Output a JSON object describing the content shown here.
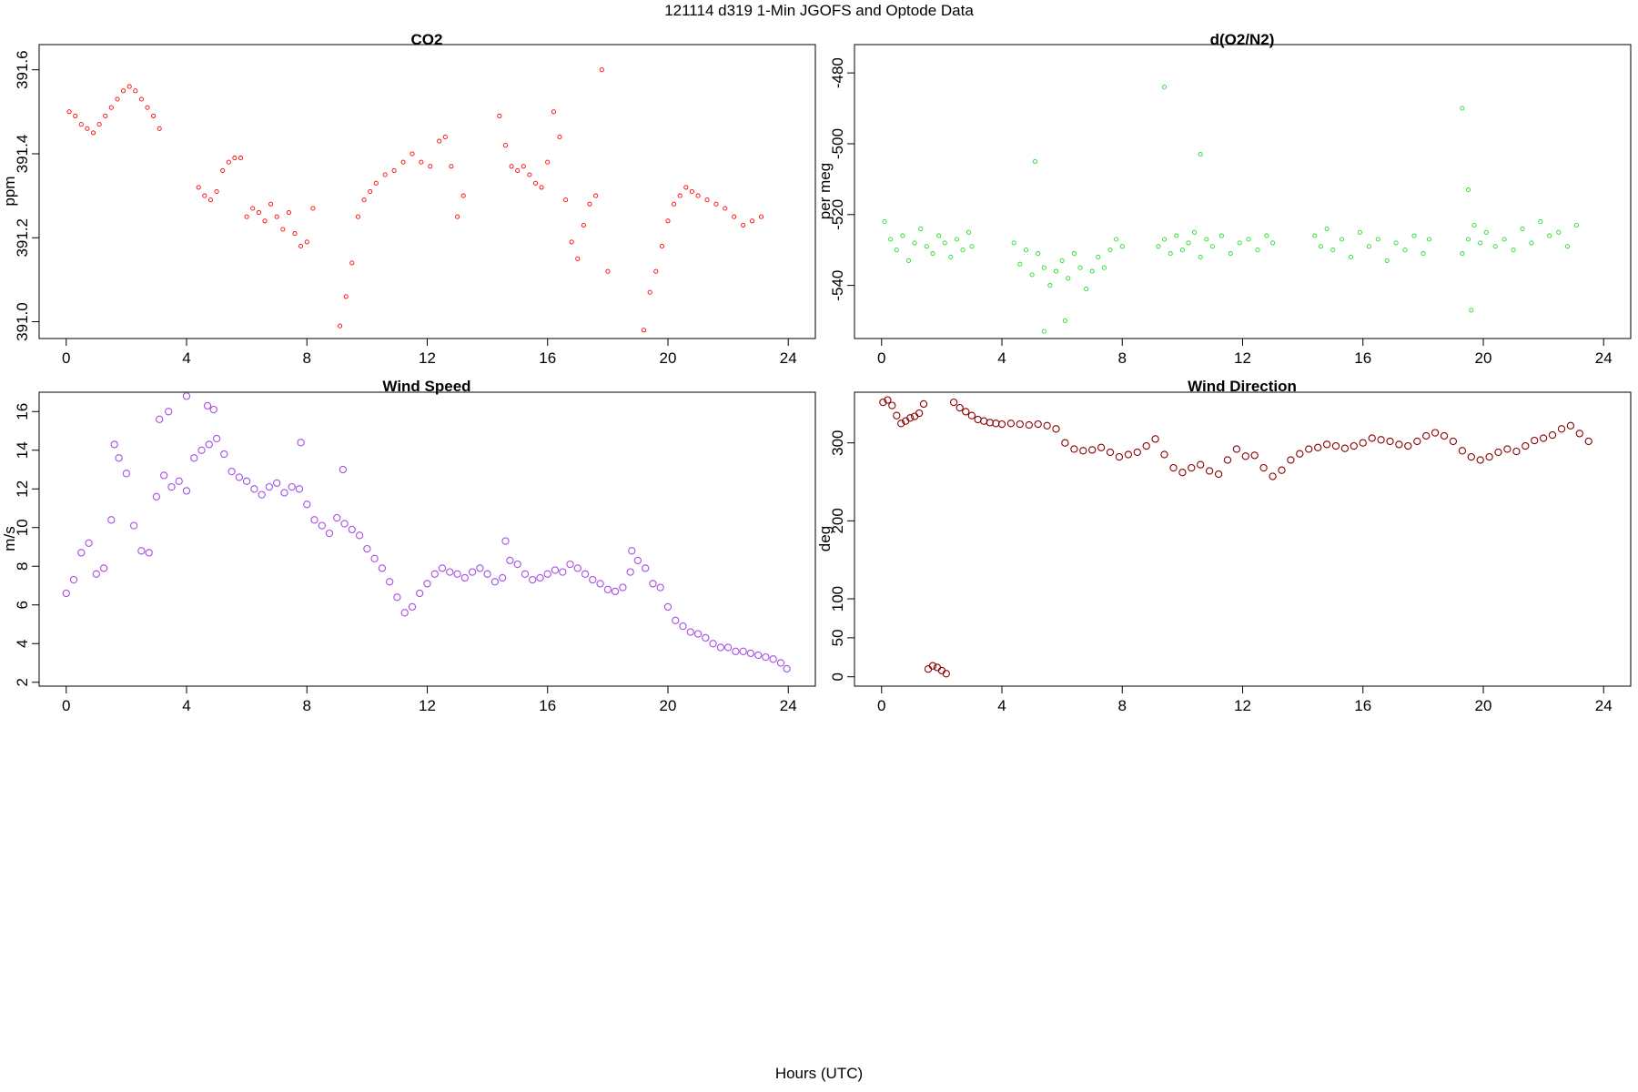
{
  "figure": {
    "title": "121114   d319   1-Min  JGOFS and Optode Data",
    "xlabel": "Hours (UTC)"
  },
  "chart_data": [
    {
      "id": "co2",
      "type": "scatter",
      "title": "CO2",
      "ylabel": "ppm",
      "xlabel": "",
      "color": "#ff0000",
      "marker_radius_hint": "small",
      "xlim": [
        -0.9,
        24.9
      ],
      "ylim": [
        390.96,
        391.66
      ],
      "xticks": [
        0,
        4,
        8,
        12,
        16,
        20,
        24
      ],
      "yticks": [
        391.0,
        391.2,
        391.4,
        391.6
      ],
      "ytick_labels": [
        "391.0",
        "391.2",
        "391.4",
        "391.6"
      ],
      "grid": false,
      "series": [
        {
          "x": [
            0.1,
            0.3,
            0.5,
            0.7,
            0.9,
            1.1,
            1.3,
            1.5,
            1.7,
            1.9,
            2.1,
            2.3,
            2.5,
            2.7,
            2.9,
            3.1,
            4.4,
            4.6,
            4.8,
            5.0,
            5.2,
            5.4,
            5.6,
            5.8,
            6.0,
            6.2,
            6.4,
            6.6,
            6.8,
            7.0,
            7.2,
            7.4,
            7.6,
            7.8,
            8.0,
            8.2,
            9.1,
            9.3,
            9.5,
            9.7,
            9.9,
            10.1,
            10.3,
            10.6,
            10.9,
            11.2,
            11.5,
            11.8,
            12.1,
            12.4,
            12.6,
            12.8,
            13.0,
            13.2,
            14.4,
            14.6,
            14.8,
            15.0,
            15.2,
            15.4,
            15.6,
            15.8,
            16.0,
            16.2,
            16.4,
            16.6,
            16.8,
            17.0,
            17.2,
            17.4,
            17.6,
            17.8,
            18.0,
            19.2,
            19.4,
            19.6,
            19.8,
            20.0,
            20.2,
            20.4,
            20.6,
            20.8,
            21.0,
            21.3,
            21.6,
            21.9,
            22.2,
            22.5,
            22.8,
            23.1
          ],
          "y": [
            391.5,
            391.49,
            391.47,
            391.46,
            391.45,
            391.47,
            391.49,
            391.51,
            391.53,
            391.55,
            391.56,
            391.55,
            391.53,
            391.51,
            391.49,
            391.46,
            391.32,
            391.3,
            391.29,
            391.31,
            391.36,
            391.38,
            391.39,
            391.39,
            391.25,
            391.27,
            391.26,
            391.24,
            391.28,
            391.25,
            391.22,
            391.26,
            391.21,
            391.18,
            391.19,
            391.27,
            390.99,
            391.06,
            391.14,
            391.25,
            391.29,
            391.31,
            391.33,
            391.35,
            391.36,
            391.38,
            391.4,
            391.38,
            391.37,
            391.43,
            391.44,
            391.37,
            391.25,
            391.3,
            391.49,
            391.42,
            391.37,
            391.36,
            391.37,
            391.35,
            391.33,
            391.32,
            391.38,
            391.5,
            391.44,
            391.29,
            391.19,
            391.15,
            391.23,
            391.28,
            391.3,
            391.6,
            391.12,
            390.98,
            391.07,
            391.12,
            391.18,
            391.24,
            391.28,
            391.3,
            391.32,
            391.31,
            391.3,
            391.29,
            391.28,
            391.27,
            391.25,
            391.23,
            391.24,
            391.25
          ]
        }
      ]
    },
    {
      "id": "o2n2",
      "type": "scatter",
      "title": "d(O2/N2)",
      "ylabel": "per meg",
      "xlabel": "",
      "color": "#22dd22",
      "marker_radius_hint": "small",
      "xlim": [
        -0.9,
        24.9
      ],
      "ylim": [
        -555,
        -472
      ],
      "xticks": [
        0,
        4,
        8,
        12,
        16,
        20,
        24
      ],
      "yticks": [
        -540,
        -520,
        -500,
        -480
      ],
      "ytick_labels": [
        "-540",
        "-520",
        "-500",
        "-480"
      ],
      "grid": false,
      "series": [
        {
          "x": [
            0.1,
            0.3,
            0.5,
            0.7,
            0.9,
            1.1,
            1.3,
            1.5,
            1.7,
            1.9,
            2.1,
            2.3,
            2.5,
            2.7,
            2.9,
            3.0,
            4.4,
            4.6,
            4.8,
            5.0,
            5.2,
            5.4,
            5.6,
            5.8,
            6.0,
            6.2,
            6.4,
            6.6,
            6.8,
            7.0,
            7.2,
            7.4,
            7.6,
            7.8,
            8.0,
            9.2,
            9.4,
            9.6,
            9.8,
            10.0,
            10.2,
            10.4,
            10.6,
            10.8,
            11.0,
            11.3,
            11.6,
            11.9,
            12.2,
            12.5,
            12.8,
            13.0,
            14.4,
            14.6,
            14.8,
            15.0,
            15.3,
            15.6,
            15.9,
            16.2,
            16.5,
            16.8,
            17.1,
            17.4,
            17.7,
            18.0,
            18.2,
            19.3,
            19.5,
            19.7,
            19.9,
            20.1,
            20.4,
            20.7,
            21.0,
            21.3,
            21.6,
            21.9,
            22.2,
            22.5,
            22.8,
            23.1,
            9.4,
            10.6,
            19.3,
            19.6,
            19.5,
            5.1,
            5.4,
            6.1
          ],
          "y": [
            -522,
            -527,
            -530,
            -526,
            -533,
            -528,
            -524,
            -529,
            -531,
            -526,
            -528,
            -532,
            -527,
            -530,
            -525,
            -529,
            -528,
            -534,
            -530,
            -537,
            -531,
            -535,
            -540,
            -536,
            -533,
            -538,
            -531,
            -535,
            -541,
            -536,
            -532,
            -535,
            -530,
            -527,
            -529,
            -529,
            -527,
            -531,
            -526,
            -530,
            -528,
            -525,
            -532,
            -527,
            -529,
            -526,
            -531,
            -528,
            -527,
            -530,
            -526,
            -528,
            -526,
            -529,
            -524,
            -530,
            -527,
            -532,
            -525,
            -529,
            -527,
            -533,
            -528,
            -530,
            -526,
            -531,
            -527,
            -531,
            -527,
            -523,
            -528,
            -525,
            -529,
            -527,
            -530,
            -524,
            -528,
            -522,
            -526,
            -525,
            -529,
            -523,
            -484,
            -503,
            -490,
            -547,
            -513,
            -505,
            -553,
            -550
          ]
        }
      ]
    },
    {
      "id": "wspd",
      "type": "scatter",
      "title": "Wind Speed",
      "ylabel": "m/s",
      "xlabel": "",
      "color": "#a64fe6",
      "marker_radius_hint": "large",
      "xlim": [
        -0.9,
        24.9
      ],
      "ylim": [
        1.8,
        17.0
      ],
      "xticks": [
        0,
        4,
        8,
        12,
        16,
        20,
        24
      ],
      "yticks": [
        2,
        4,
        6,
        8,
        10,
        12,
        14,
        16
      ],
      "ytick_labels": [
        "2",
        "4",
        "6",
        "8",
        "10",
        "12",
        "14",
        "16"
      ],
      "grid": false,
      "series": [
        {
          "x": [
            0.0,
            0.25,
            0.5,
            0.75,
            1.0,
            1.25,
            1.5,
            1.75,
            2.0,
            2.25,
            2.5,
            2.75,
            3.0,
            3.25,
            3.5,
            3.75,
            4.0,
            4.25,
            4.5,
            4.75,
            5.0,
            5.25,
            5.5,
            5.75,
            6.0,
            6.25,
            6.5,
            6.75,
            7.0,
            7.25,
            7.5,
            7.75,
            8.0,
            8.25,
            8.5,
            8.75,
            9.0,
            9.25,
            9.5,
            9.75,
            10.0,
            10.25,
            10.5,
            10.75,
            11.0,
            11.25,
            11.5,
            11.75,
            12.0,
            12.25,
            12.5,
            12.75,
            13.0,
            13.25,
            13.5,
            13.75,
            14.0,
            14.25,
            14.5,
            14.75,
            15.0,
            15.25,
            15.5,
            15.75,
            16.0,
            16.25,
            16.5,
            16.75,
            17.0,
            17.25,
            17.5,
            17.75,
            18.0,
            18.25,
            18.5,
            18.75,
            19.0,
            19.25,
            19.5,
            19.75,
            20.0,
            20.25,
            20.5,
            20.75,
            21.0,
            21.25,
            21.5,
            21.75,
            22.0,
            22.25,
            22.5,
            22.75,
            23.0,
            23.25,
            23.5,
            23.75,
            23.95,
            1.6,
            3.1,
            3.4,
            4.0,
            4.7,
            4.9,
            7.8,
            9.2,
            14.6,
            18.8
          ],
          "y": [
            6.6,
            7.3,
            8.7,
            9.2,
            7.6,
            7.9,
            10.4,
            13.6,
            12.8,
            10.1,
            8.8,
            8.7,
            11.6,
            12.7,
            12.1,
            12.4,
            11.9,
            13.6,
            14.0,
            14.3,
            14.6,
            13.8,
            12.9,
            12.6,
            12.4,
            12.0,
            11.7,
            12.1,
            12.3,
            11.8,
            12.1,
            12.0,
            11.2,
            10.4,
            10.1,
            9.7,
            10.5,
            10.2,
            9.9,
            9.6,
            8.9,
            8.4,
            7.9,
            7.2,
            6.4,
            5.6,
            5.9,
            6.6,
            7.1,
            7.6,
            7.9,
            7.7,
            7.6,
            7.4,
            7.7,
            7.9,
            7.6,
            7.2,
            7.4,
            8.3,
            8.1,
            7.6,
            7.3,
            7.4,
            7.6,
            7.8,
            7.7,
            8.1,
            7.9,
            7.6,
            7.3,
            7.1,
            6.8,
            6.7,
            6.9,
            7.7,
            8.3,
            7.9,
            7.1,
            6.9,
            5.9,
            5.2,
            4.9,
            4.6,
            4.5,
            4.3,
            4.0,
            3.8,
            3.8,
            3.6,
            3.6,
            3.5,
            3.4,
            3.3,
            3.2,
            3.0,
            2.7,
            14.3,
            15.6,
            16.0,
            16.8,
            16.3,
            16.1,
            14.4,
            13.0,
            9.3,
            8.8
          ]
        }
      ]
    },
    {
      "id": "wdir",
      "type": "scatter",
      "title": "Wind Direction",
      "ylabel": "deg",
      "xlabel": "",
      "color": "#8b0000",
      "marker_radius_hint": "large",
      "xlim": [
        -0.9,
        24.9
      ],
      "ylim": [
        -12,
        365
      ],
      "xticks": [
        0,
        4,
        8,
        12,
        16,
        20,
        24
      ],
      "yticks": [
        0,
        50,
        100,
        200,
        300
      ],
      "ytick_labels": [
        "0",
        "50",
        "100",
        "200",
        "300"
      ],
      "grid": false,
      "series": [
        {
          "x": [
            0.05,
            0.2,
            0.35,
            0.5,
            0.65,
            0.8,
            0.95,
            1.1,
            1.25,
            1.4,
            1.55,
            1.7,
            1.85,
            2.0,
            2.15,
            2.4,
            2.6,
            2.8,
            3.0,
            3.2,
            3.4,
            3.6,
            3.8,
            4.0,
            4.3,
            4.6,
            4.9,
            5.2,
            5.5,
            5.8,
            6.1,
            6.4,
            6.7,
            7.0,
            7.3,
            7.6,
            7.9,
            8.2,
            8.5,
            8.8,
            9.1,
            9.4,
            9.7,
            10.0,
            10.3,
            10.6,
            10.9,
            11.2,
            11.5,
            11.8,
            12.1,
            12.4,
            12.7,
            13.0,
            13.3,
            13.6,
            13.9,
            14.2,
            14.5,
            14.8,
            15.1,
            15.4,
            15.7,
            16.0,
            16.3,
            16.6,
            16.9,
            17.2,
            17.5,
            17.8,
            18.1,
            18.4,
            18.7,
            19.0,
            19.3,
            19.6,
            19.9,
            20.2,
            20.5,
            20.8,
            21.1,
            21.4,
            21.7,
            22.0,
            22.3,
            22.6,
            22.9,
            23.2,
            23.5
          ],
          "y": [
            352,
            355,
            348,
            335,
            325,
            328,
            332,
            334,
            338,
            350,
            10,
            14,
            12,
            8,
            4,
            352,
            345,
            340,
            335,
            330,
            328,
            326,
            325,
            324,
            325,
            324,
            323,
            324,
            322,
            318,
            300,
            292,
            290,
            291,
            294,
            288,
            282,
            285,
            288,
            296,
            305,
            285,
            268,
            262,
            268,
            272,
            264,
            260,
            278,
            292,
            283,
            284,
            268,
            257,
            265,
            278,
            286,
            292,
            294,
            298,
            296,
            293,
            296,
            300,
            306,
            304,
            302,
            298,
            296,
            302,
            309,
            313,
            309,
            302,
            290,
            282,
            278,
            282,
            288,
            292,
            289,
            296,
            303,
            306,
            310,
            318,
            322,
            312,
            302
          ]
        }
      ]
    }
  ]
}
